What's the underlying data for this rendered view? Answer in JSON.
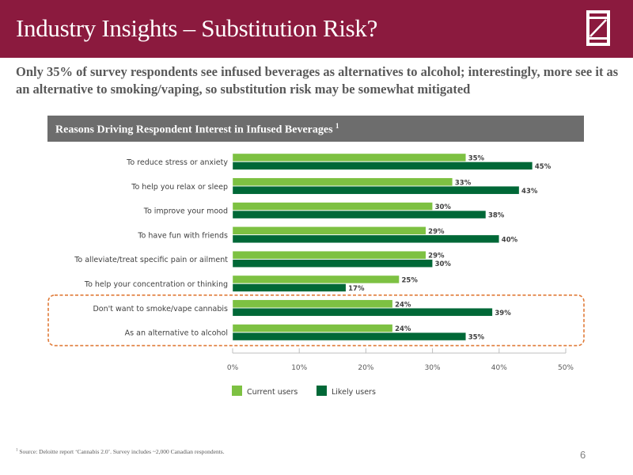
{
  "header": {
    "title": "Industry Insights – Substitution Risk?",
    "logo": "z-logo-icon"
  },
  "subtitle": "Only 35% of survey respondents see infused beverages as alternatives to alcohol; interestingly, more see it as an alternative to smoking/vaping, so substitution risk may be somewhat mitigated",
  "chart_banner": {
    "title": "Reasons Driving Respondent Interest in Infused Beverages",
    "footnote_marker": "1"
  },
  "colors": {
    "header_bg": "#8b1a3e",
    "current_users": "#7dc142",
    "likely_users": "#006837",
    "highlight_border": "#e07b39",
    "banner_bg": "#6d6d6d"
  },
  "chart_data": {
    "type": "bar",
    "orientation": "horizontal",
    "title": "Reasons Driving Respondent Interest in Infused Beverages",
    "xlabel": "",
    "ylabel": "",
    "xlim": [
      0,
      50
    ],
    "x_ticks": [
      "0%",
      "10%",
      "20%",
      "30%",
      "40%",
      "50%"
    ],
    "x_tick_values": [
      0,
      10,
      20,
      30,
      40,
      50
    ],
    "grid": false,
    "legend_position": "bottom-left",
    "categories": [
      "To reduce stress or anxiety",
      "To help you relax or sleep",
      "To improve your mood",
      "To have fun with friends",
      "To alleviate/treat specific pain or ailment",
      "To help your concentration or thinking",
      "Don't want to smoke/vape cannabis",
      "As an alternative to alcohol"
    ],
    "series": [
      {
        "name": "Current users",
        "values": [
          35,
          33,
          30,
          29,
          29,
          25,
          24,
          24
        ]
      },
      {
        "name": "Likely users",
        "values": [
          45,
          43,
          38,
          40,
          30,
          17,
          39,
          35
        ]
      }
    ],
    "value_suffix": "%",
    "highlighted_categories": [
      "Don't want to smoke/vape cannabis",
      "As an alternative to alcohol"
    ]
  },
  "footnote": {
    "marker": "1",
    "text": "Source: Deloitte report ‘Cannabis 2.0’. Survey includes ~2,000 Canadian respondents."
  },
  "page_number": "6"
}
